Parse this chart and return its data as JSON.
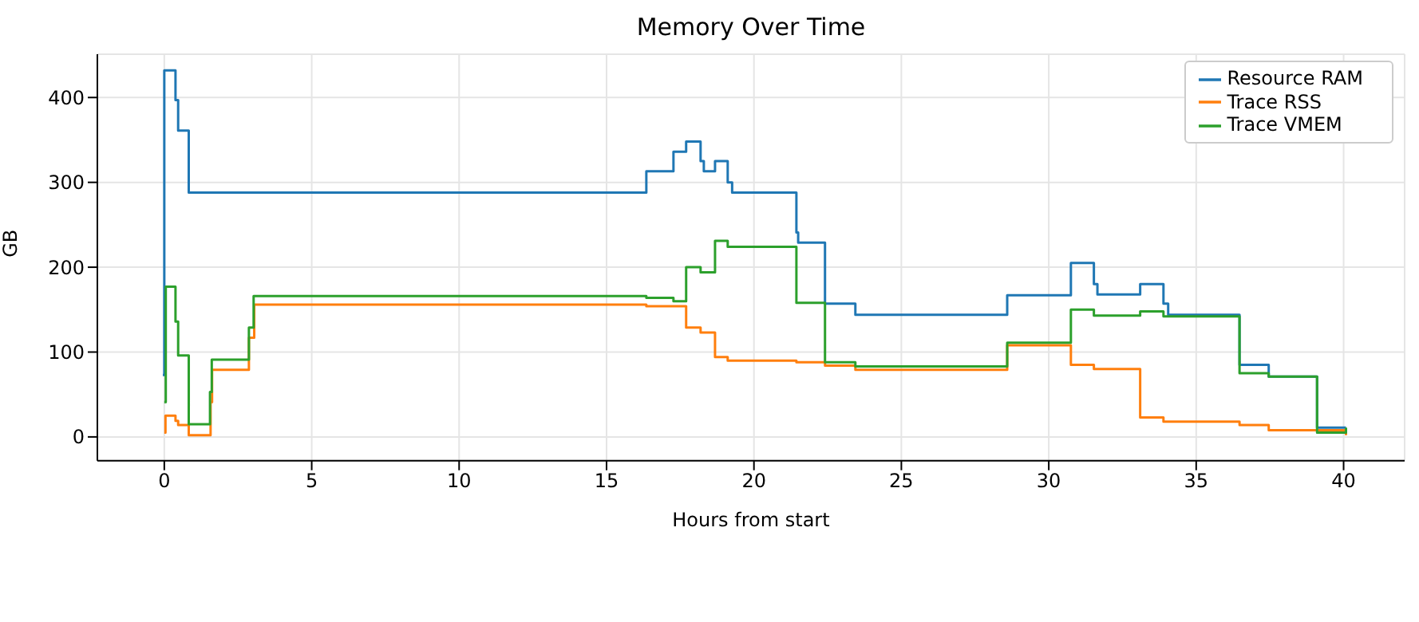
{
  "chart_data": {
    "type": "step",
    "title": "Memory Over Time",
    "xlabel": "Hours from start",
    "ylabel": "GB",
    "xlim": [
      -2.27,
      42.07
    ],
    "xticks": [
      0,
      5,
      10,
      15,
      20,
      25,
      30,
      35,
      40
    ],
    "ylim": [
      -28,
      451
    ],
    "yticks": [
      0,
      100,
      200,
      300,
      400
    ],
    "grid": true,
    "legend": "top right",
    "series": [
      {
        "name": "Resource RAM",
        "color": "#1f77b4",
        "x": [
          -0.05,
          0,
          0.38,
          0.47,
          0.83,
          16.35,
          17.27,
          17.7,
          18.19,
          18.3,
          18.68,
          19.11,
          19.26,
          21.44,
          21.5,
          22.41,
          23.44,
          28.59,
          30.75,
          31.53,
          31.65,
          33.1,
          33.89,
          34.05,
          36.47,
          37.46,
          39.1,
          40.08
        ],
        "values": [
          73,
          432,
          397,
          361,
          288,
          313,
          336,
          348,
          325,
          313,
          325,
          300,
          288,
          241,
          229,
          157,
          144,
          167,
          205,
          180,
          168,
          180,
          157,
          144,
          85,
          71,
          11,
          11
        ]
      },
      {
        "name": "Trace RSS",
        "color": "#ff7f0e",
        "x": [
          0,
          0.04,
          0.38,
          0.47,
          0.83,
          1.57,
          1.62,
          2.87,
          3.05,
          16.35,
          17.7,
          18.19,
          18.68,
          19.11,
          21.44,
          22.41,
          23.44,
          28.59,
          30.75,
          31.53,
          33.1,
          33.89,
          36.47,
          37.46,
          40.08
        ],
        "values": [
          5,
          25,
          19,
          14,
          2,
          41,
          79,
          117,
          156,
          154,
          129,
          123,
          94,
          90,
          88,
          84,
          79,
          108,
          85,
          80,
          23,
          18,
          14,
          8,
          2
        ]
      },
      {
        "name": "Trace VMEM",
        "color": "#2ca02c",
        "x": [
          0,
          0.05,
          0.38,
          0.47,
          0.83,
          1.55,
          1.61,
          2.87,
          3.03,
          16.35,
          17.27,
          17.7,
          18.19,
          18.68,
          19.11,
          21.44,
          22.41,
          23.44,
          28.59,
          30.75,
          31.53,
          33.1,
          33.89,
          36.47,
          37.46,
          39.1,
          40.08
        ],
        "values": [
          41,
          177,
          136,
          96,
          15,
          53,
          91,
          129,
          166,
          164,
          160,
          200,
          194,
          231,
          224,
          158,
          88,
          83,
          111,
          150,
          143,
          148,
          142,
          75,
          71,
          5,
          11
        ]
      }
    ]
  }
}
